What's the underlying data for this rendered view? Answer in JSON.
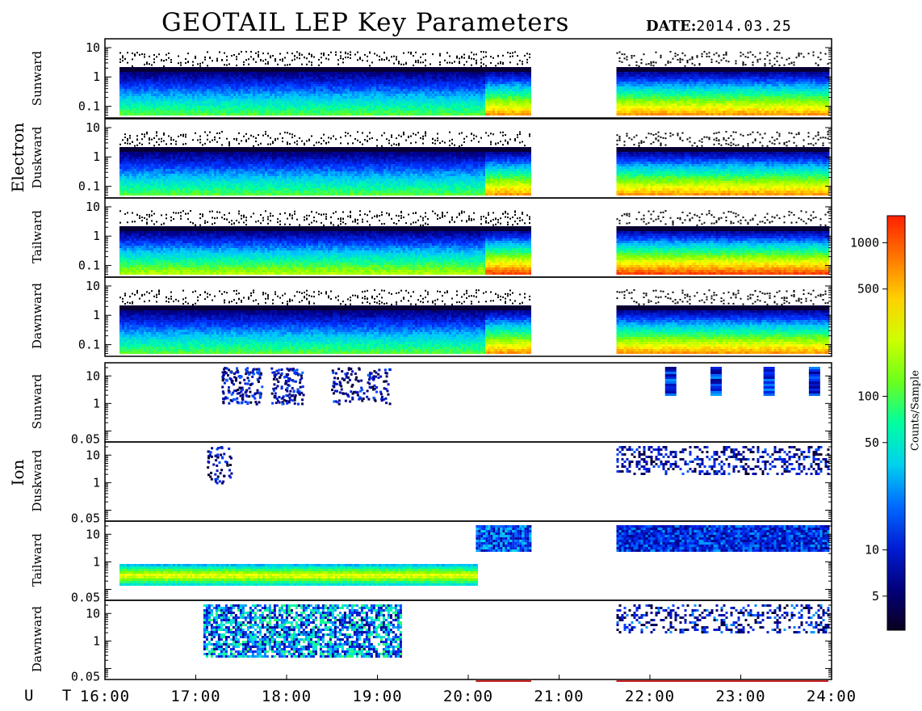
{
  "title": "GEOTAIL LEP Key Parameters",
  "date_label": "DATE:",
  "date_value": "2014.03.25",
  "x_axis_label": "U T",
  "colorbar": {
    "label": "Counts/Sample",
    "scale": "log",
    "ticks": [
      "5",
      "10",
      "50",
      "100",
      "500",
      "1000"
    ],
    "tick_values": [
      5,
      10,
      50,
      100,
      500,
      1000
    ],
    "range": [
      3,
      1500
    ]
  },
  "groups": [
    {
      "name": "Electron"
    },
    {
      "name": "Ion"
    }
  ],
  "chart_data": {
    "type": "heatmap",
    "x_ticks": [
      "16:00",
      "17:00",
      "18:00",
      "19:00",
      "20:00",
      "21:00",
      "22:00",
      "23:00",
      "24:00"
    ],
    "x_range": [
      "16:00",
      "24:00"
    ],
    "data_gap": [
      "20:40",
      "21:40"
    ],
    "panels": [
      {
        "group": "Electron",
        "direction": "Sunward",
        "y_ticks": [
          "10",
          "1",
          "0.1"
        ],
        "y_tick_values": [
          10,
          1,
          0.1
        ],
        "ylim": [
          0.04,
          20
        ],
        "scale": "log"
      },
      {
        "group": "Electron",
        "direction": "Duskward",
        "y_ticks": [
          "10",
          "1",
          "0.1"
        ],
        "y_tick_values": [
          10,
          1,
          0.1
        ],
        "ylim": [
          0.04,
          20
        ],
        "scale": "log"
      },
      {
        "group": "Electron",
        "direction": "Tailward",
        "y_ticks": [
          "10",
          "1",
          "0.1"
        ],
        "y_tick_values": [
          10,
          1,
          0.1
        ],
        "ylim": [
          0.04,
          20
        ],
        "scale": "log"
      },
      {
        "group": "Electron",
        "direction": "Dawnward",
        "y_ticks": [
          "10",
          "1",
          "0.1"
        ],
        "y_tick_values": [
          10,
          1,
          0.1
        ],
        "ylim": [
          0.04,
          20
        ],
        "scale": "log"
      },
      {
        "group": "Ion",
        "direction": "Sunward",
        "y_ticks": [
          "10",
          "1",
          "0.05"
        ],
        "y_tick_values": [
          10,
          1,
          0.05
        ],
        "ylim": [
          0.04,
          30
        ],
        "scale": "log"
      },
      {
        "group": "Ion",
        "direction": "Duskward",
        "y_ticks": [
          "10",
          "1",
          "0.05"
        ],
        "y_tick_values": [
          10,
          1,
          0.05
        ],
        "ylim": [
          0.04,
          30
        ],
        "scale": "log"
      },
      {
        "group": "Ion",
        "direction": "Tailward",
        "y_ticks": [
          "10",
          "1",
          "0.05"
        ],
        "y_tick_values": [
          10,
          1,
          0.05
        ],
        "ylim": [
          0.04,
          30
        ],
        "scale": "log"
      },
      {
        "group": "Ion",
        "direction": "Dawnward",
        "y_ticks": [
          "10",
          "1",
          "0.05"
        ],
        "y_tick_values": [
          10,
          1,
          0.05
        ],
        "ylim": [
          0.04,
          30
        ],
        "scale": "log"
      }
    ]
  }
}
